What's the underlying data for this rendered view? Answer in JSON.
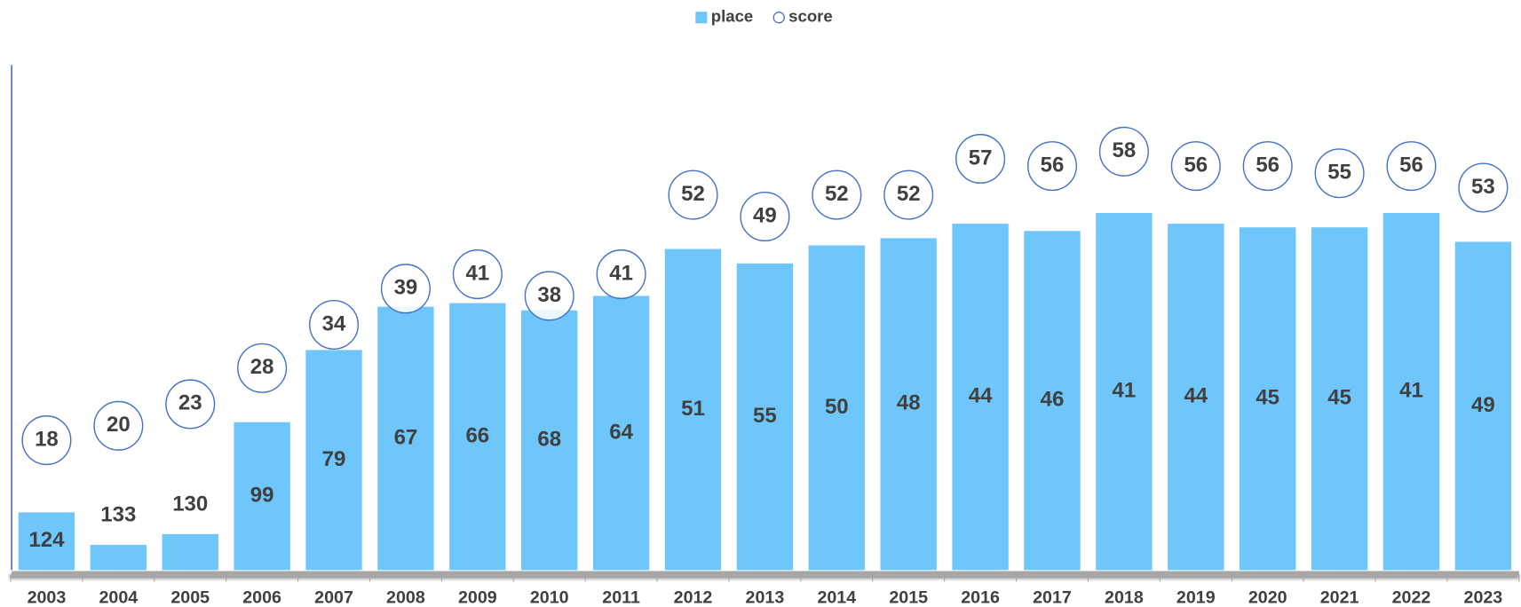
{
  "chart_data": {
    "type": "bar",
    "categories": [
      "2003",
      "2004",
      "2005",
      "2006",
      "2007",
      "2008",
      "2009",
      "2010",
      "2011",
      "2012",
      "2013",
      "2014",
      "2015",
      "2016",
      "2017",
      "2018",
      "2019",
      "2020",
      "2021",
      "2022",
      "2023"
    ],
    "series": [
      {
        "name": "place",
        "color": "#6ec6fa",
        "values": [
          124,
          133,
          130,
          99,
          79,
          67,
          66,
          68,
          64,
          51,
          55,
          50,
          48,
          44,
          46,
          41,
          44,
          45,
          45,
          41,
          49
        ]
      },
      {
        "name": "score",
        "color": "#4472c4",
        "axis": "y2",
        "marker": "circle",
        "values": [
          18,
          20,
          23,
          28,
          34,
          39,
          41,
          38,
          41,
          52,
          49,
          52,
          52,
          57,
          56,
          58,
          56,
          56,
          55,
          56,
          53
        ]
      }
    ],
    "ylim": [
      140,
      0
    ],
    "y2lim": [
      0,
      70
    ],
    "legend": "top"
  }
}
